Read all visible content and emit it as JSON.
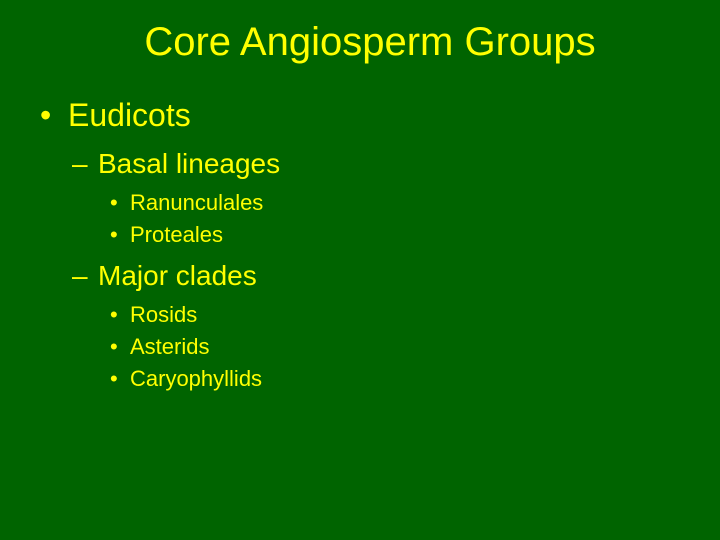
{
  "colors": {
    "background": "#006400",
    "text": "#ffff00",
    "title": "#ffff00"
  },
  "typography": {
    "font_family": "Arial, Helvetica, sans-serif",
    "title_fontsize": 40,
    "l1_fontsize": 32,
    "l2_fontsize": 28,
    "l3_fontsize": 22
  },
  "title": "Core Angiosperm Groups",
  "outline": {
    "l1_label": "Eudicots",
    "sections": [
      {
        "heading": "Basal lineages",
        "items": [
          "Ranunculales",
          "Proteales"
        ]
      },
      {
        "heading": "Major clades",
        "items": [
          "Rosids",
          "Asterids",
          "Caryophyllids"
        ]
      }
    ]
  }
}
